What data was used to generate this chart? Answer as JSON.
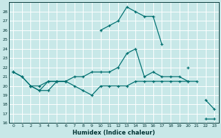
{
  "xlabel": "Humidex (Indice chaleur)",
  "background_color": "#c8e8e8",
  "grid_color": "#ffffff",
  "line_color": "#007070",
  "xlim": [
    -0.5,
    23.5
  ],
  "ylim": [
    16,
    29
  ],
  "yticks": [
    16,
    17,
    18,
    19,
    20,
    21,
    22,
    23,
    24,
    25,
    26,
    27,
    28
  ],
  "xticks": [
    0,
    1,
    2,
    3,
    4,
    5,
    6,
    7,
    8,
    9,
    10,
    11,
    12,
    13,
    14,
    15,
    16,
    17,
    18,
    19,
    20,
    21,
    22,
    23
  ],
  "curve1_y": [
    21.5,
    21.0,
    20.0,
    19.5,
    20.5,
    20.5,
    20.5,
    null,
    null,
    null,
    26.0,
    26.5,
    27.0,
    28.5,
    28.0,
    27.5,
    27.5,
    24.5,
    null,
    null,
    22.0,
    null,
    18.5,
    17.5
  ],
  "curve2_y": [
    21.5,
    21.0,
    20.0,
    20.0,
    20.5,
    20.5,
    20.5,
    21.0,
    21.0,
    21.5,
    21.5,
    21.5,
    22.0,
    23.5,
    24.0,
    21.0,
    21.5,
    21.0,
    21.0,
    21.0,
    20.5,
    20.5,
    null,
    null
  ],
  "curve3_y": [
    21.5,
    null,
    20.0,
    19.5,
    19.5,
    20.5,
    20.5,
    20.0,
    19.5,
    19.0,
    20.0,
    20.0,
    20.0,
    20.0,
    20.5,
    20.5,
    20.5,
    20.5,
    20.5,
    20.5,
    20.5,
    null,
    16.5,
    16.5
  ]
}
